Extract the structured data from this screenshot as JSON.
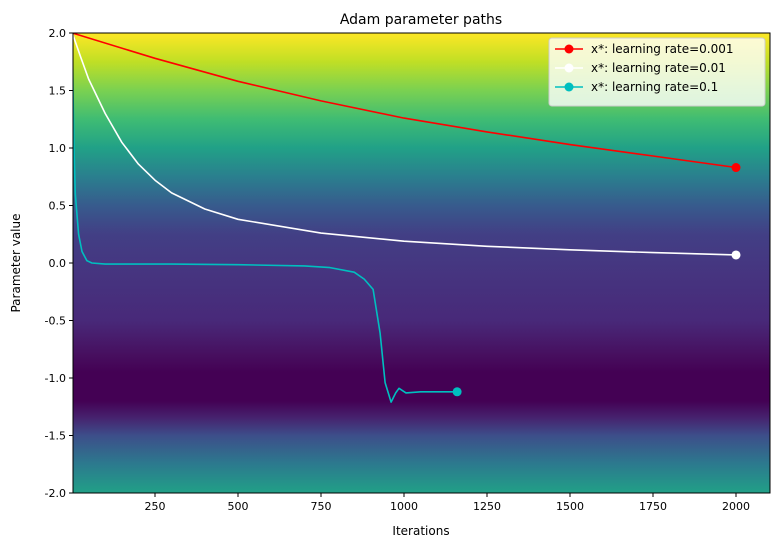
{
  "chart_data": {
    "type": "line",
    "title": "Adam parameter paths",
    "xlabel": "Iterations",
    "ylabel": "Parameter value",
    "xlim": [
      1,
      2100
    ],
    "ylim": [
      -2.0,
      2.0
    ],
    "xticks": [
      250,
      500,
      750,
      1000,
      1250,
      1500,
      1750,
      2000
    ],
    "yticks": [
      -2.0,
      -1.5,
      -1.0,
      -0.5,
      0.0,
      0.5,
      1.0,
      1.5,
      2.0
    ],
    "grid": false,
    "legend_position": "top-right",
    "background": {
      "type": "heatmap",
      "colormap": "viridis",
      "description_axis": "varies with parameter value"
    },
    "series": [
      {
        "name": "x*: learning rate=0.001",
        "color": "#ff0000",
        "x": [
          1,
          250,
          500,
          750,
          1000,
          1250,
          1500,
          1750,
          2000
        ],
        "y": [
          2.0,
          1.78,
          1.58,
          1.41,
          1.26,
          1.14,
          1.03,
          0.93,
          0.83
        ],
        "endpoint": [
          2000,
          0.83
        ]
      },
      {
        "name": "x*: learning rate=0.01",
        "color": "#ffffff",
        "x": [
          1,
          25,
          50,
          100,
          150,
          200,
          250,
          300,
          400,
          500,
          750,
          1000,
          1250,
          1500,
          1750,
          2000
        ],
        "y": [
          2.0,
          1.8,
          1.6,
          1.3,
          1.05,
          0.86,
          0.72,
          0.61,
          0.47,
          0.38,
          0.26,
          0.19,
          0.145,
          0.115,
          0.09,
          0.07
        ],
        "endpoint": [
          2000,
          0.07
        ]
      },
      {
        "name": "x*: learning rate=0.1",
        "color": "#00bfbf",
        "x": [
          1,
          3,
          6,
          10,
          20,
          30,
          45,
          60,
          100,
          300,
          500,
          700,
          777,
          850,
          880,
          907,
          928,
          943,
          961,
          975,
          985,
          1006,
          1050,
          1160
        ],
        "y": [
          2.0,
          1.5,
          1.0,
          0.6,
          0.25,
          0.1,
          0.02,
          0.0,
          -0.01,
          -0.01,
          -0.015,
          -0.025,
          -0.04,
          -0.08,
          -0.14,
          -0.23,
          -0.61,
          -1.04,
          -1.21,
          -1.13,
          -1.09,
          -1.13,
          -1.12,
          -1.12
        ],
        "endpoint": [
          1160,
          -1.12
        ]
      }
    ]
  }
}
